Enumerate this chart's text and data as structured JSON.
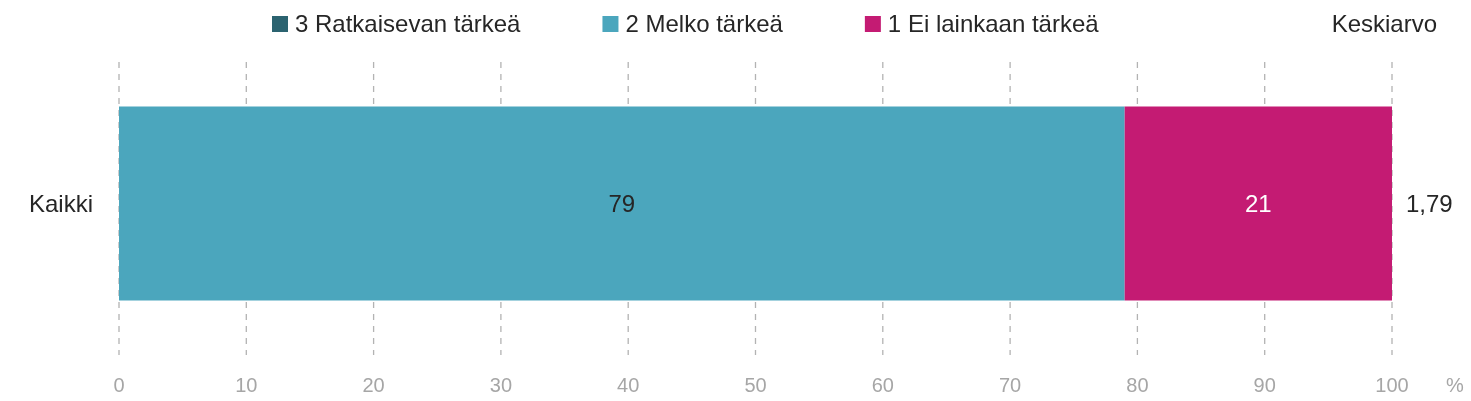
{
  "chart_data": {
    "type": "bar",
    "orientation": "horizontal",
    "stacked": true,
    "categories": [
      "Kaikki"
    ],
    "series": [
      {
        "name": "3 Ratkaisevan tärkeä",
        "color": "#2b6370",
        "values": [
          0
        ],
        "value_labels": [
          null
        ]
      },
      {
        "name": "2 Melko tärkeä",
        "color": "#4ba6bd",
        "values": [
          79
        ],
        "value_labels": [
          "79"
        ]
      },
      {
        "name": "1 Ei lainkaan tärkeä",
        "color": "#c41b73",
        "values": [
          21
        ],
        "value_labels": [
          "21"
        ]
      }
    ],
    "xlim": [
      0,
      100
    ],
    "xticks": [
      0,
      10,
      20,
      30,
      40,
      50,
      60,
      70,
      80,
      90,
      100
    ],
    "xlabel": "%",
    "grid": "x",
    "legend": "top",
    "annotations": [
      "Keskiarvo",
      "1,79"
    ]
  }
}
